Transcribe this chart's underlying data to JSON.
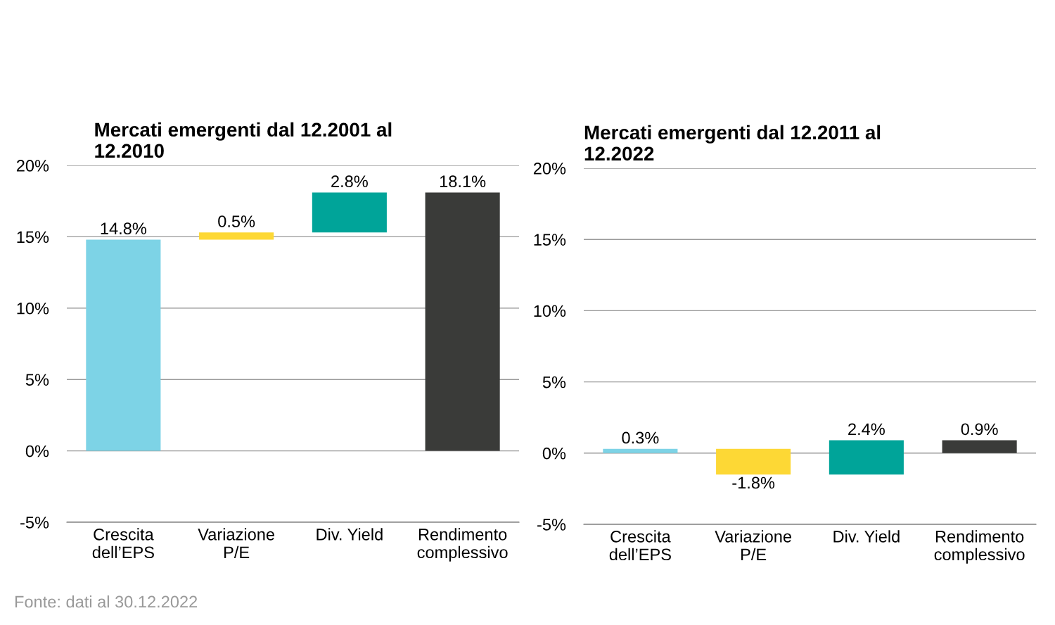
{
  "chart_data": [
    {
      "type": "bar",
      "title": "Mercati emergenti dal 12.2001 al\n12.2010",
      "categories": [
        "Crescita\ndell’EPS",
        "Variazione\nP/E",
        "Div. Yield",
        "Rendimento\ncomplessivo"
      ],
      "values": [
        14.8,
        0.5,
        2.8,
        18.1
      ],
      "base": [
        0,
        14.8,
        15.3,
        0
      ],
      "colors": [
        "#7dd3e6",
        "#fdd835",
        "#00a499",
        "#3a3b39"
      ],
      "value_labels": [
        "14.8%",
        "0.5%",
        "2.8%",
        "18.1%"
      ],
      "ylim": [
        -5,
        20
      ],
      "yticks": [
        {
          "value": -5,
          "label": "-5%"
        },
        {
          "value": 0,
          "label": "0%"
        },
        {
          "value": 5,
          "label": "5%"
        },
        {
          "value": 10,
          "label": "10%"
        },
        {
          "value": 15,
          "label": "15%"
        },
        {
          "value": 20,
          "label": "20%"
        }
      ],
      "grid": "y",
      "annotations": [
        "Fonte: dati al 30.12.2022"
      ]
    },
    {
      "type": "bar",
      "title": "Mercati emergenti dal 12.2011 al\n12.2022",
      "categories": [
        "Crescita\ndell’EPS",
        "Variazione\nP/E",
        "Div. Yield",
        "Rendimento\ncomplessivo"
      ],
      "values": [
        0.3,
        -1.8,
        2.4,
        0.9
      ],
      "base": [
        0,
        0.3,
        -1.5,
        0
      ],
      "colors": [
        "#7dd3e6",
        "#fdd835",
        "#00a499",
        "#3a3b39"
      ],
      "value_labels": [
        "0.3%",
        "-1.8%",
        "2.4%",
        "0.9%"
      ],
      "ylim": [
        -5,
        20
      ],
      "yticks": [
        {
          "value": -5,
          "label": "-5%"
        },
        {
          "value": 0,
          "label": "0%"
        },
        {
          "value": 5,
          "label": "5%"
        },
        {
          "value": 10,
          "label": "10%"
        },
        {
          "value": 15,
          "label": "15%"
        },
        {
          "value": 20,
          "label": "20%"
        }
      ],
      "grid": "y"
    }
  ]
}
